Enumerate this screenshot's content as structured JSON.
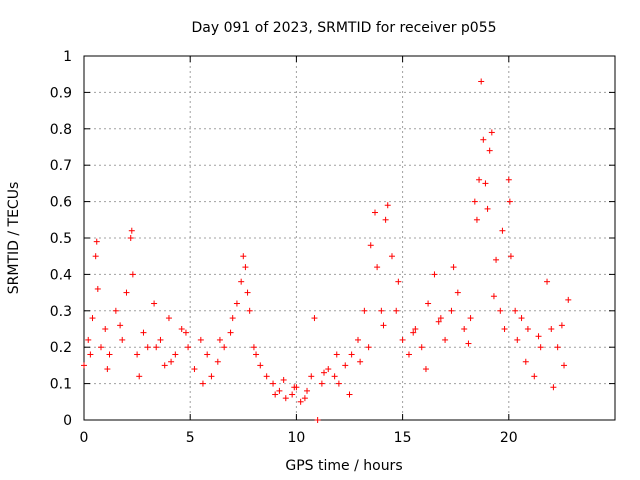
{
  "chart_data": {
    "type": "scatter",
    "title": "Day 091 of 2023, SRMTID for receiver p055",
    "xlabel": "GPS time / hours",
    "ylabel": "SRMTID / TECUs",
    "xlim": [
      0,
      25
    ],
    "ylim": [
      0,
      1
    ],
    "xticks": [
      0,
      5,
      10,
      15,
      20
    ],
    "xtick_labels": [
      "0",
      "5",
      "10",
      "15",
      "20"
    ],
    "yticks": [
      0,
      0.1,
      0.2,
      0.3,
      0.4,
      0.5,
      0.6,
      0.7,
      0.8,
      0.9,
      1
    ],
    "ytick_labels": [
      "0",
      "0.1",
      "0.2",
      "0.3",
      "0.4",
      "0.5",
      "0.6",
      "0.7",
      "0.8",
      "0.9",
      "1"
    ],
    "grid": true,
    "marker": "plus",
    "color": "#ff0000",
    "series": [
      {
        "name": "SRMTID",
        "x": [
          0.0,
          0.2,
          0.4,
          0.55,
          0.6,
          0.65,
          0.8,
          1.0,
          1.2,
          1.5,
          1.8,
          2.0,
          2.2,
          2.25,
          2.3,
          2.5,
          2.8,
          3.0,
          3.3,
          3.6,
          3.8,
          4.0,
          4.3,
          4.6,
          4.9,
          5.2,
          5.5,
          5.8,
          6.0,
          6.3,
          6.6,
          6.9,
          7.2,
          7.4,
          7.5,
          7.6,
          7.8,
          8.0,
          8.3,
          8.6,
          8.9,
          9.2,
          9.5,
          9.8,
          10.0,
          10.2,
          10.5,
          10.7,
          10.85,
          11.0,
          11.2,
          11.5,
          11.8,
          12.0,
          12.3,
          12.6,
          12.9,
          13.2,
          13.5,
          13.7,
          13.8,
          14.0,
          14.2,
          14.3,
          14.5,
          14.7,
          15.0,
          15.3,
          15.6,
          15.9,
          16.2,
          16.5,
          16.8,
          17.0,
          17.3,
          17.6,
          17.9,
          18.2,
          18.5,
          18.6,
          18.7,
          18.8,
          18.9,
          19.0,
          19.1,
          19.2,
          19.4,
          19.6,
          19.8,
          20.0,
          20.05,
          20.1,
          20.3,
          20.6,
          20.9,
          21.2,
          21.5,
          21.8,
          22.0,
          22.3,
          22.6,
          22.8,
          0.3,
          1.1,
          1.7,
          2.6,
          3.4,
          4.1,
          4.8,
          5.6,
          6.4,
          7.0,
          7.7,
          8.1,
          9.0,
          9.4,
          9.9,
          10.4,
          11.3,
          11.9,
          12.5,
          13.0,
          13.4,
          14.1,
          14.8,
          15.5,
          16.1,
          16.7,
          17.4,
          18.1,
          18.4,
          19.3,
          19.7,
          20.4,
          20.8,
          21.4,
          22.1,
          22.5
        ],
        "values": [
          0.15,
          0.22,
          0.28,
          0.45,
          0.49,
          0.36,
          0.2,
          0.25,
          0.18,
          0.3,
          0.22,
          0.35,
          0.5,
          0.52,
          0.4,
          0.18,
          0.24,
          0.2,
          0.32,
          0.22,
          0.15,
          0.28,
          0.18,
          0.25,
          0.2,
          0.14,
          0.22,
          0.18,
          0.12,
          0.16,
          0.2,
          0.24,
          0.32,
          0.38,
          0.45,
          0.42,
          0.3,
          0.2,
          0.15,
          0.12,
          0.1,
          0.08,
          0.06,
          0.07,
          0.09,
          0.05,
          0.08,
          0.12,
          0.28,
          0.0,
          0.1,
          0.14,
          0.12,
          0.1,
          0.15,
          0.18,
          0.22,
          0.3,
          0.48,
          0.57,
          0.42,
          0.3,
          0.55,
          0.59,
          0.45,
          0.3,
          0.22,
          0.18,
          0.25,
          0.2,
          0.32,
          0.4,
          0.28,
          0.22,
          0.3,
          0.35,
          0.25,
          0.28,
          0.55,
          0.66,
          0.93,
          0.77,
          0.65,
          0.58,
          0.74,
          0.79,
          0.44,
          0.3,
          0.25,
          0.66,
          0.6,
          0.45,
          0.3,
          0.28,
          0.25,
          0.12,
          0.2,
          0.38,
          0.25,
          0.2,
          0.15,
          0.33,
          0.18,
          0.14,
          0.26,
          0.12,
          0.2,
          0.16,
          0.24,
          0.1,
          0.22,
          0.28,
          0.35,
          0.18,
          0.07,
          0.11,
          0.09,
          0.06,
          0.13,
          0.18,
          0.07,
          0.16,
          0.2,
          0.26,
          0.38,
          0.24,
          0.14,
          0.27,
          0.42,
          0.21,
          0.6,
          0.34,
          0.52,
          0.22,
          0.16,
          0.23,
          0.09,
          0.26
        ]
      }
    ]
  }
}
